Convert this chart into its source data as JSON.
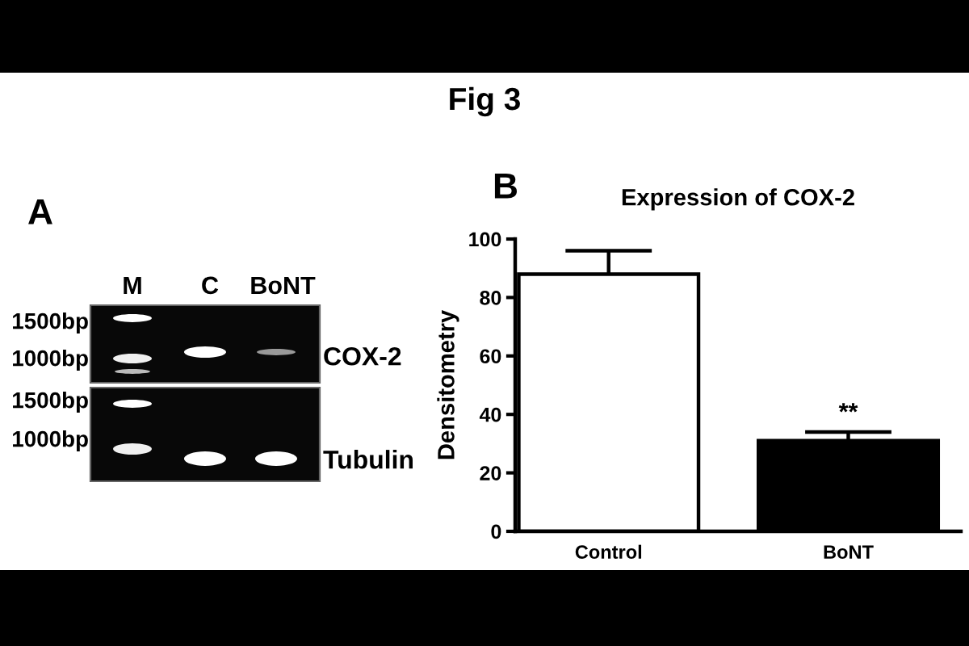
{
  "chart_data": [
    {
      "type": "other",
      "annotations": [
        "Fig 3",
        "A",
        "M",
        "C",
        "BoNT",
        "1500bp",
        "1000bp",
        "1500bp",
        "1000bp",
        "COX-2",
        "Tubulin"
      ]
    },
    {
      "type": "bar",
      "title": "Expression of COX-2",
      "ylabel": "Densitometry",
      "categories": [
        "Control",
        "BoNT"
      ],
      "values": [
        88,
        31
      ],
      "colors": [
        "#ffffff",
        "#000000"
      ],
      "errors": [
        [
          88,
          96
        ],
        [
          31,
          34
        ]
      ],
      "ylim": [
        0,
        100
      ],
      "yticks": [
        0,
        20,
        40,
        60,
        80,
        100
      ],
      "annotations": [
        "B",
        {
          "text": "**",
          "x": "BoNT",
          "y": 34
        }
      ]
    }
  ]
}
